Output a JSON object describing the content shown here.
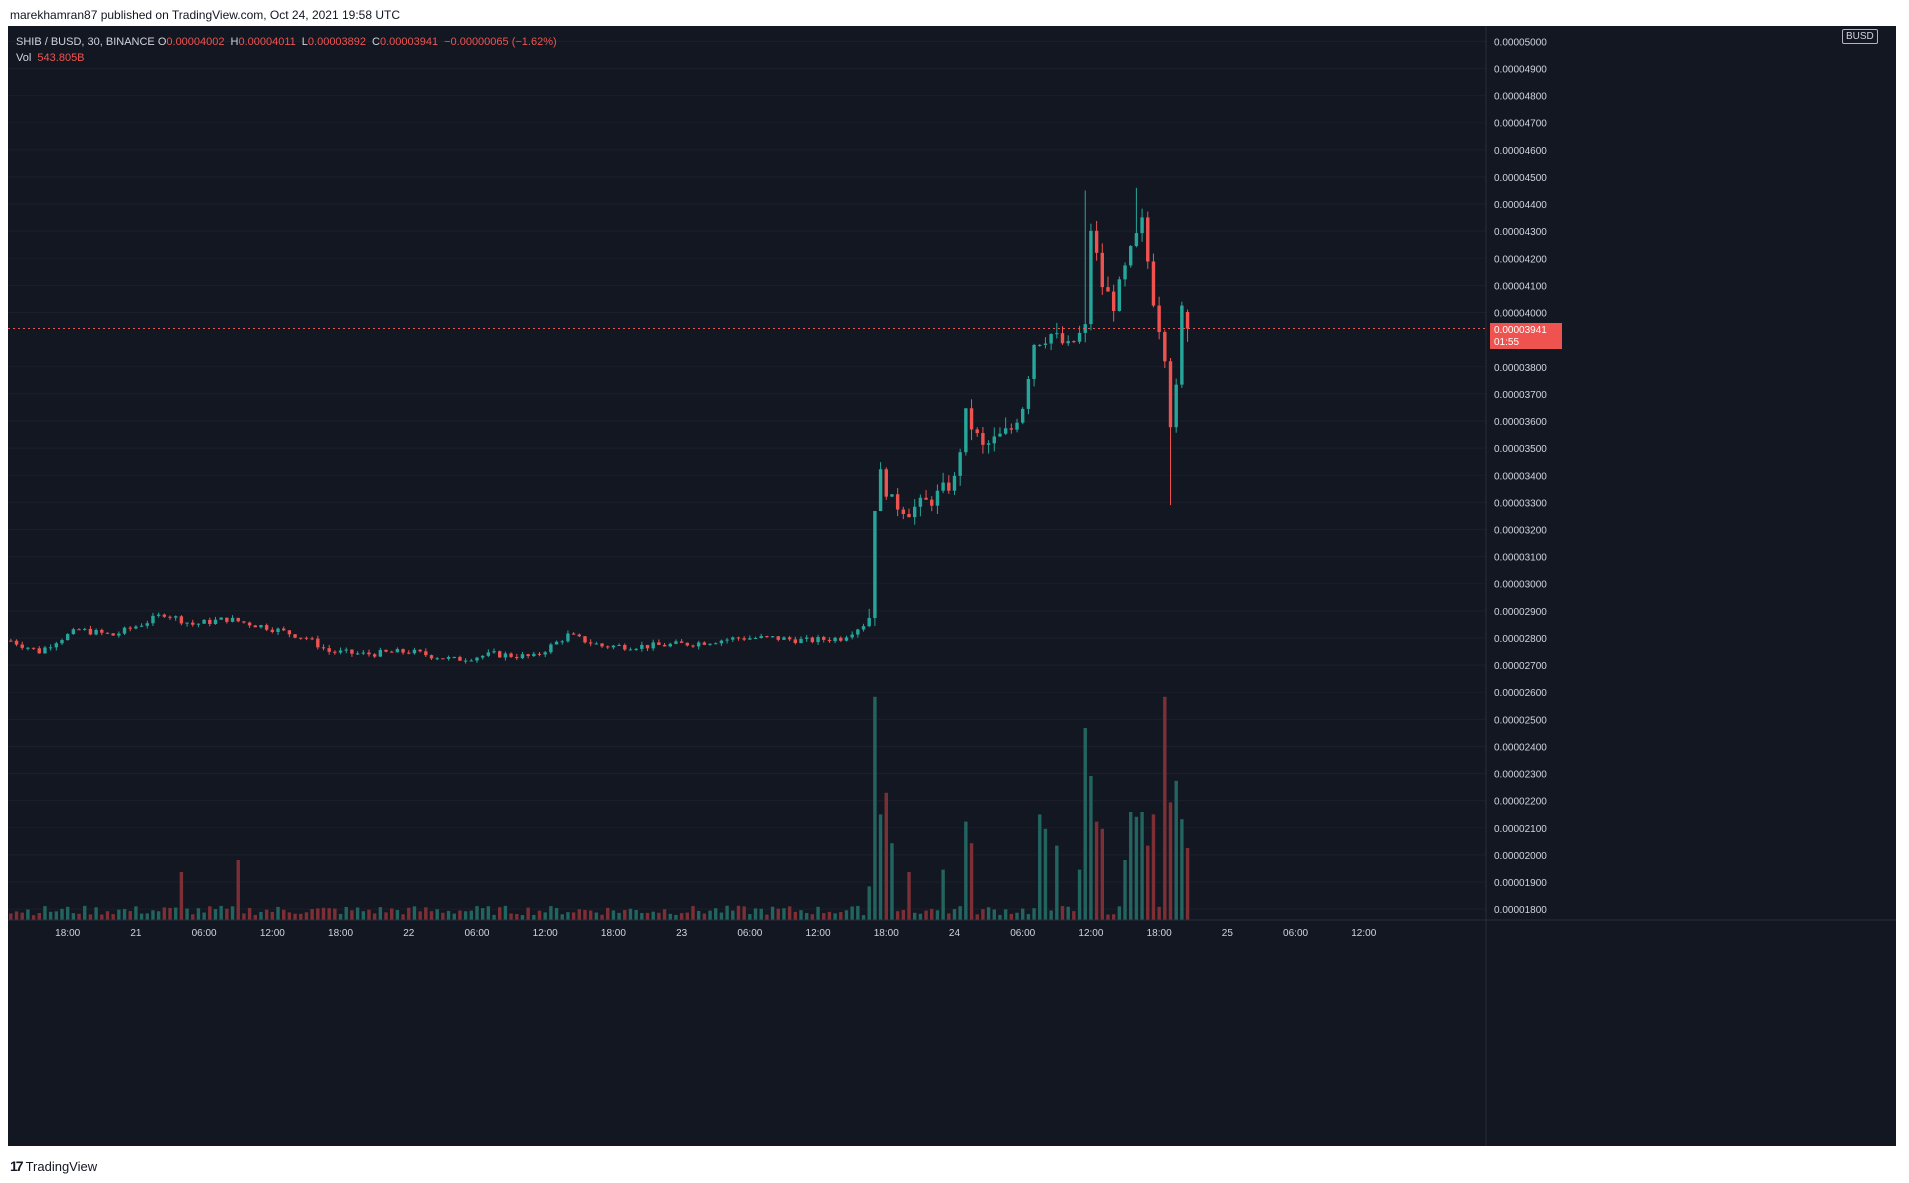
{
  "header": {
    "published": "marekhamran87 published on TradingView.com, Oct 24, 2021 19:58 UTC"
  },
  "legend": {
    "symbol": "SHIB / BUSD, 30, BINANCE",
    "o_label": "O",
    "o_value": "0.00004002",
    "h_label": "H",
    "h_value": "0.00004011",
    "l_label": "L",
    "l_value": "0.00003892",
    "c_label": "C",
    "c_value": "0.00003941",
    "change": "−0.00000065 (−1.62%)",
    "vol_label": "Vol",
    "vol_value": "543.805B"
  },
  "price_scale": {
    "currency": "BUSD",
    "last_price": "0.00003941",
    "countdown": "01:55"
  },
  "footer": {
    "brand": "TradingView"
  },
  "colors": {
    "background": "#131722",
    "up": "#26a69a",
    "down": "#ef5350",
    "vol_up": "#22645f",
    "vol_down": "#7c3035",
    "text": "#d1d4dc",
    "last_price_line": "#ef5350"
  },
  "chart_data": {
    "type": "candlestick",
    "symbol": "SHIB / BUSD",
    "interval": "30",
    "exchange": "BINANCE",
    "y_axis": {
      "ticks": [
        "0.00005000",
        "0.00004900",
        "0.00004800",
        "0.00004700",
        "0.00004600",
        "0.00004500",
        "0.00004400",
        "0.00004300",
        "0.00004200",
        "0.00004100",
        "0.00004000",
        "0.00003800",
        "0.00003700",
        "0.00003600",
        "0.00003500",
        "0.00003400",
        "0.00003300",
        "0.00003200",
        "0.00003100",
        "0.00003000",
        "0.00002900",
        "0.00002800",
        "0.00002700",
        "0.00002600",
        "0.00002500",
        "0.00002400",
        "0.00002300",
        "0.00002200",
        "0.00002100",
        "0.00002000",
        "0.00001900",
        "0.00001800"
      ],
      "range": [
        1.76e-05,
        5.005e-05
      ]
    },
    "x_axis": {
      "ticks": [
        "18:00",
        "21",
        "06:00",
        "12:00",
        "18:00",
        "22",
        "06:00",
        "12:00",
        "18:00",
        "23",
        "06:00",
        "12:00",
        "18:00",
        "24",
        "06:00",
        "12:00",
        "18:00",
        "25",
        "06:00",
        "12:00"
      ],
      "first_tick_index": 10,
      "bars_per_tick": 12
    },
    "key_points": [
      {
        "i": 0,
        "p": 2.79
      },
      {
        "i": 5,
        "p": 2.75
      },
      {
        "i": 8,
        "p": 2.79
      },
      {
        "i": 12,
        "p": 2.83
      },
      {
        "i": 18,
        "p": 2.81
      },
      {
        "i": 24,
        "p": 2.86
      },
      {
        "i": 27,
        "p": 2.89
      },
      {
        "i": 32,
        "p": 2.85
      },
      {
        "i": 38,
        "p": 2.87
      },
      {
        "i": 45,
        "p": 2.84
      },
      {
        "i": 52,
        "p": 2.8
      },
      {
        "i": 56,
        "p": 2.75
      },
      {
        "i": 62,
        "p": 2.74
      },
      {
        "i": 70,
        "p": 2.75
      },
      {
        "i": 78,
        "p": 2.72
      },
      {
        "i": 85,
        "p": 2.74
      },
      {
        "i": 92,
        "p": 2.73
      },
      {
        "i": 98,
        "p": 2.81
      },
      {
        "i": 104,
        "p": 2.77
      },
      {
        "i": 112,
        "p": 2.77
      },
      {
        "i": 120,
        "p": 2.78
      },
      {
        "i": 128,
        "p": 2.8
      },
      {
        "i": 134,
        "p": 2.8
      },
      {
        "i": 140,
        "p": 2.79
      },
      {
        "i": 146,
        "p": 2.8
      },
      {
        "i": 150,
        "p": 2.85
      },
      {
        "i": 151,
        "p": 2.88
      },
      {
        "i": 152,
        "p": 3.29
      },
      {
        "i": 153,
        "p": 3.4
      },
      {
        "i": 155,
        "p": 3.3
      },
      {
        "i": 158,
        "p": 3.27
      },
      {
        "i": 162,
        "p": 3.31
      },
      {
        "i": 166,
        "p": 3.38
      },
      {
        "i": 168,
        "p": 3.62
      },
      {
        "i": 171,
        "p": 3.5
      },
      {
        "i": 176,
        "p": 3.57
      },
      {
        "i": 178,
        "p": 3.66
      },
      {
        "i": 180,
        "p": 3.89
      },
      {
        "i": 183,
        "p": 3.92
      },
      {
        "i": 186,
        "p": 3.87
      },
      {
        "i": 189,
        "p": 3.94
      },
      {
        "i": 190,
        "p": 4.31
      },
      {
        "i": 192,
        "p": 4.1
      },
      {
        "i": 194,
        "p": 4.03
      },
      {
        "i": 197,
        "p": 4.22
      },
      {
        "i": 199,
        "p": 4.33
      },
      {
        "i": 201,
        "p": 4.05
      },
      {
        "i": 203,
        "p": 3.85
      },
      {
        "i": 204,
        "p": 3.6
      },
      {
        "i": 205,
        "p": 3.71
      },
      {
        "i": 206,
        "p": 4.01
      },
      {
        "i": 207,
        "p": 3.941
      }
    ],
    "spikes": [
      {
        "i": 189,
        "high": 4.45
      },
      {
        "i": 198,
        "high": 4.46
      },
      {
        "i": 204,
        "low": 3.29
      },
      {
        "i": 207,
        "high": 4.011,
        "low": 3.892
      }
    ],
    "volume_bars": [
      {
        "i": 30,
        "v": 0.2
      },
      {
        "i": 40,
        "v": 0.25
      },
      {
        "i": 151,
        "v": 0.14
      },
      {
        "i": 152,
        "v": 0.93
      },
      {
        "i": 153,
        "v": 0.44
      },
      {
        "i": 154,
        "v": 0.53
      },
      {
        "i": 155,
        "v": 0.32
      },
      {
        "i": 158,
        "v": 0.2
      },
      {
        "i": 164,
        "v": 0.21
      },
      {
        "i": 168,
        "v": 0.41
      },
      {
        "i": 169,
        "v": 0.32
      },
      {
        "i": 181,
        "v": 0.44
      },
      {
        "i": 182,
        "v": 0.38
      },
      {
        "i": 184,
        "v": 0.31
      },
      {
        "i": 188,
        "v": 0.21
      },
      {
        "i": 189,
        "v": 0.8
      },
      {
        "i": 190,
        "v": 0.6
      },
      {
        "i": 191,
        "v": 0.41
      },
      {
        "i": 192,
        "v": 0.38
      },
      {
        "i": 196,
        "v": 0.25
      },
      {
        "i": 197,
        "v": 0.45
      },
      {
        "i": 198,
        "v": 0.43
      },
      {
        "i": 199,
        "v": 0.45
      },
      {
        "i": 200,
        "v": 0.31
      },
      {
        "i": 201,
        "v": 0.44
      },
      {
        "i": 203,
        "v": 0.93
      },
      {
        "i": 204,
        "v": 0.49
      },
      {
        "i": 205,
        "v": 0.58
      },
      {
        "i": 206,
        "v": 0.42
      },
      {
        "i": 207,
        "v": 0.3
      }
    ],
    "last_price": 3.941e-05
  }
}
